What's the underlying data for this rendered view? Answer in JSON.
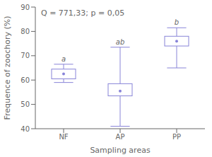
{
  "chart_data": {
    "type": "box",
    "categories": [
      "NF",
      "AP",
      "PP"
    ],
    "whisker_lower": [
      59.0,
      41.0,
      65.0
    ],
    "box_lower": [
      60.5,
      53.5,
      74.0
    ],
    "medians": [
      62.5,
      55.5,
      76.0
    ],
    "box_upper": [
      64.5,
      58.5,
      78.0
    ],
    "whisker_upper": [
      66.5,
      73.5,
      81.5
    ],
    "letters": [
      "a",
      "ab",
      "b"
    ],
    "annotation": "Q = 771,33; p = 0,05",
    "xlabel": "Sampling areas",
    "ylabel": "Frequence of zoochory (%)",
    "ylim": [
      40,
      90
    ],
    "yticks": [
      40,
      50,
      60,
      70,
      80,
      90
    ],
    "grid": false
  }
}
